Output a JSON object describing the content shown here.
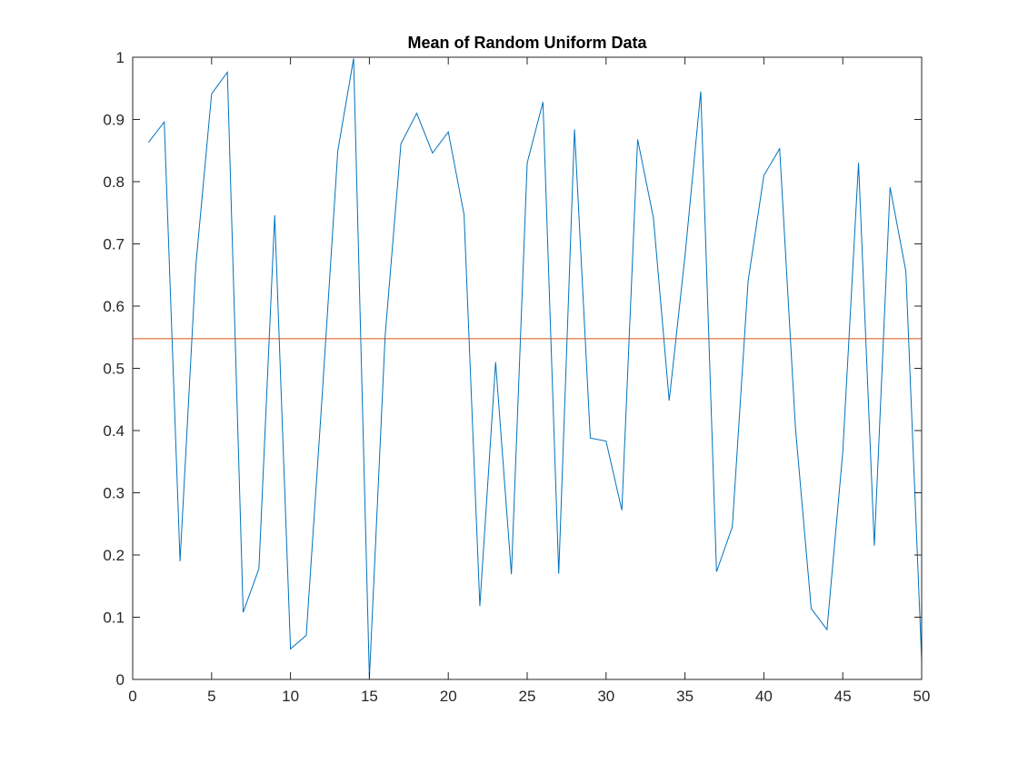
{
  "chart_data": {
    "type": "line",
    "title": "Mean of Random Uniform Data",
    "xlabel": "",
    "ylabel": "",
    "xlim": [
      0,
      50
    ],
    "ylim": [
      0,
      1
    ],
    "xticks": [
      0,
      5,
      10,
      15,
      20,
      25,
      30,
      35,
      40,
      45,
      50
    ],
    "yticks": [
      0,
      0.1,
      0.2,
      0.3,
      0.4,
      0.5,
      0.6,
      0.7,
      0.8,
      0.9,
      1
    ],
    "grid": false,
    "series": [
      {
        "color": "#0072BD",
        "x": [
          1,
          2,
          3,
          4,
          5,
          6,
          7,
          8,
          9,
          10,
          11,
          12,
          13,
          14,
          15,
          16,
          17,
          18,
          19,
          20,
          21,
          22,
          23,
          24,
          25,
          26,
          27,
          28,
          29,
          30,
          31,
          32,
          33,
          34,
          35,
          36,
          37,
          38,
          39,
          40,
          41,
          42,
          43,
          44,
          45,
          46,
          47,
          48,
          49,
          50
        ],
        "y": [
          0.863,
          0.896,
          0.19,
          0.665,
          0.941,
          0.976,
          0.108,
          0.178,
          0.746,
          0.049,
          0.071,
          0.453,
          0.85,
          0.998,
          0.002,
          0.553,
          0.861,
          0.91,
          0.846,
          0.88,
          0.747,
          0.118,
          0.51,
          0.169,
          0.83,
          0.928,
          0.17,
          0.884,
          0.388,
          0.383,
          0.272,
          0.868,
          0.742,
          0.448,
          0.68,
          0.945,
          0.173,
          0.245,
          0.64,
          0.81,
          0.853,
          0.405,
          0.114,
          0.08,
          0.365,
          0.83,
          0.215,
          0.791,
          0.656,
          0.03
        ]
      },
      {
        "color": "#D95319",
        "x": [
          0,
          50
        ],
        "y": [
          0.5477,
          0.5477
        ]
      }
    ]
  }
}
